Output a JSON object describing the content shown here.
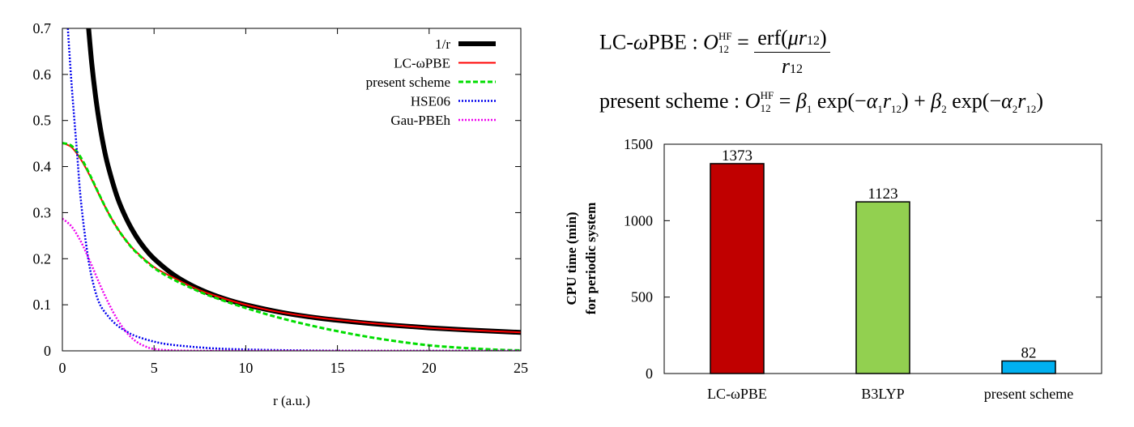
{
  "chart_data": [
    {
      "type": "line",
      "title": "",
      "xlabel": "r (a.u.)",
      "ylabel": "",
      "xlim": [
        0,
        25
      ],
      "ylim": [
        0,
        0.7
      ],
      "x_ticks": [
        "0",
        "5",
        "10",
        "15",
        "20",
        "25"
      ],
      "y_ticks": [
        "0",
        "0.1",
        "0.2",
        "0.3",
        "0.4",
        "0.5",
        "0.6",
        "0.7"
      ],
      "grid": false,
      "legend_position": "top-right",
      "series": [
        {
          "name": "1/r",
          "color": "#000000",
          "style": "solid-thick",
          "x": [
            1.43,
            1.6,
            1.8,
            2,
            2.25,
            2.5,
            3,
            3.5,
            4,
            4.5,
            5,
            6,
            7,
            8,
            9,
            10,
            12,
            14,
            16,
            18,
            20,
            22,
            24,
            25
          ],
          "y": [
            0.7,
            0.625,
            0.556,
            0.5,
            0.444,
            0.4,
            0.333,
            0.286,
            0.25,
            0.222,
            0.2,
            0.167,
            0.143,
            0.125,
            0.111,
            0.1,
            0.083,
            0.071,
            0.0625,
            0.0556,
            0.05,
            0.0455,
            0.0417,
            0.04
          ]
        },
        {
          "name": "LC-ωPBE",
          "color": "#ff0000",
          "style": "solid",
          "x": [
            0,
            0.5,
            1,
            1.5,
            2,
            2.5,
            3,
            3.5,
            4,
            5,
            6,
            7,
            8,
            10,
            12,
            15,
            20,
            25
          ],
          "y": [
            0.451,
            0.442,
            0.416,
            0.38,
            0.339,
            0.3,
            0.266,
            0.238,
            0.216,
            0.182,
            0.16,
            0.14,
            0.124,
            0.1,
            0.083,
            0.067,
            0.05,
            0.04
          ]
        },
        {
          "name": "present scheme",
          "color": "#00dd00",
          "style": "dashed",
          "x": [
            0,
            0.5,
            1,
            1.5,
            2,
            2.5,
            3,
            3.5,
            4,
            5,
            6,
            7,
            8,
            10,
            12,
            14,
            16,
            18,
            20,
            22,
            24,
            25
          ],
          "y": [
            0.451,
            0.445,
            0.42,
            0.382,
            0.34,
            0.3,
            0.266,
            0.238,
            0.215,
            0.18,
            0.156,
            0.137,
            0.12,
            0.093,
            0.07,
            0.051,
            0.035,
            0.022,
            0.012,
            0.006,
            0.002,
            0.001
          ]
        },
        {
          "name": "HSE06",
          "color": "#0000ee",
          "style": "dotted",
          "x": [
            0.3,
            0.5,
            0.8,
            1,
            1.3,
            1.6,
            2,
            2.5,
            3,
            3.5,
            4,
            5,
            6,
            8,
            10,
            13,
            17,
            20,
            25
          ],
          "y": [
            0.7,
            0.58,
            0.43,
            0.33,
            0.23,
            0.16,
            0.105,
            0.075,
            0.055,
            0.042,
            0.032,
            0.02,
            0.013,
            0.006,
            0.003,
            0.001,
            0.0,
            0.0,
            0.0
          ]
        },
        {
          "name": "Gau-PBEh",
          "color": "#ee00ee",
          "style": "dotted",
          "x": [
            0,
            0.5,
            1,
            1.5,
            2,
            2.5,
            3,
            3.5,
            4,
            4.5,
            5,
            6,
            8,
            10,
            25
          ],
          "y": [
            0.287,
            0.27,
            0.238,
            0.195,
            0.148,
            0.105,
            0.068,
            0.04,
            0.021,
            0.01,
            0.004,
            0.001,
            0.0,
            0.0,
            0.0
          ]
        }
      ]
    },
    {
      "type": "bar",
      "title": "",
      "xlabel": "",
      "ylabel": [
        "CPU time (min)",
        "for periodic system"
      ],
      "ylim": [
        0,
        1500
      ],
      "y_ticks": [
        "0",
        "500",
        "1000",
        "1500"
      ],
      "categories": [
        "LC-ωPBE",
        "B3LYP",
        "present scheme"
      ],
      "values": [
        1373,
        1123,
        82
      ],
      "value_labels": [
        "1373",
        "1123",
        "82"
      ],
      "colors": [
        "#c00000",
        "#92d050",
        "#00b0f0"
      ]
    }
  ],
  "equations": {
    "lc_name": "LC-",
    "lc_omega": "ω",
    "lc_rest": "PBE",
    "colon": " : ",
    "op": "O",
    "op_sub": "12",
    "op_sup": "HF",
    "equals": " = ",
    "erf": "erf(",
    "mu": "μ",
    "r": "r",
    "r_sub": "12",
    "close": ")",
    "present_name": "present scheme",
    "beta": "β",
    "alpha": "α",
    "exp": " exp(−",
    "plus": ") + ",
    "one": "1",
    "two": "2"
  }
}
